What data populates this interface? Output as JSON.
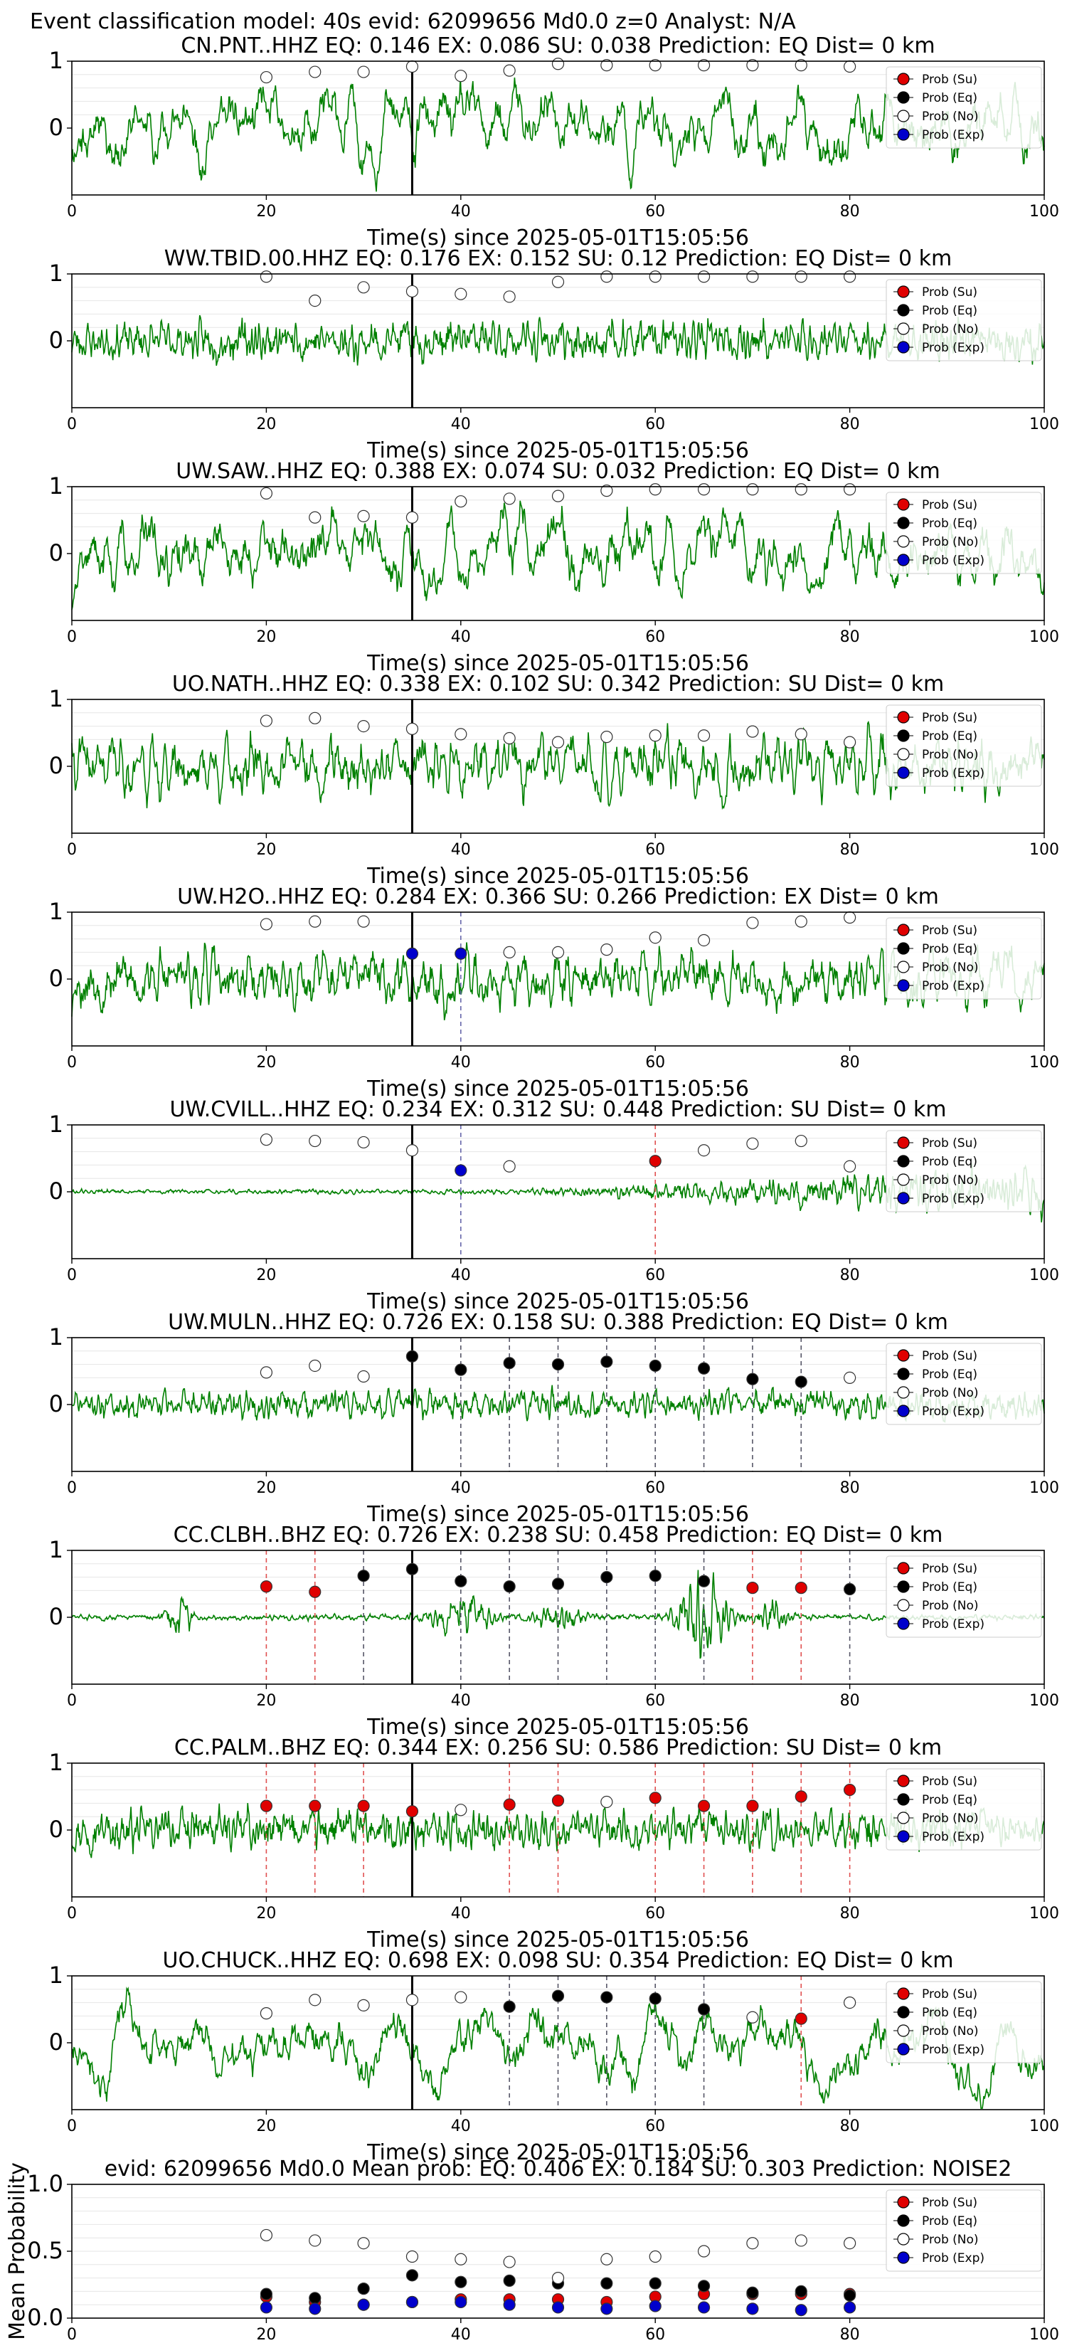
{
  "figure": {
    "suptitle": "Event classification model: 40s evid: 62099656 Md0.0 z=0 Analyst: N/A"
  },
  "colors": {
    "waveform": "#008000",
    "su": "#e00000",
    "eq": "#000000",
    "no": "#ffffff",
    "exp": "#0000cc",
    "su_line": "#e05050",
    "eq_line": "#555566",
    "exp_line": "#6666aa"
  },
  "legend": [
    "Prob (Su)",
    "Prob (Eq)",
    "Prob (No)",
    "Prob (Exp)"
  ],
  "chart_data": [
    {
      "type": "line",
      "station": "CN.PNT..HHZ",
      "title": "CN.PNT..HHZ   EQ: 0.146  EX: 0.086  SU: 0.038   Prediction: EQ    Dist= 0 km",
      "xlabel": "Time(s) since 2025-05-01T15:05:56",
      "xlim": [
        0,
        100
      ],
      "ylim": [
        -1,
        1
      ],
      "xticks": [
        "0",
        "20",
        "40",
        "60",
        "80",
        "100"
      ],
      "yticks": [
        "1",
        "0"
      ],
      "pick_time": 35,
      "wave": {
        "amp": 0.55,
        "smooth": 6,
        "seed": 11
      },
      "times": [
        20,
        25,
        30,
        35,
        40,
        45,
        50,
        55,
        60,
        65,
        70,
        75,
        80
      ],
      "classes": [
        "No",
        "No",
        "No",
        "No",
        "No",
        "No",
        "No",
        "No",
        "No",
        "No",
        "No",
        "No",
        "No"
      ],
      "probs": [
        0.76,
        0.84,
        0.84,
        0.92,
        0.78,
        0.86,
        0.96,
        0.94,
        0.94,
        0.94,
        0.94,
        0.94,
        0.92
      ]
    },
    {
      "type": "line",
      "station": "WW.TBID.00.HHZ",
      "title": "WW.TBID.00.HHZ   EQ: 0.176  EX: 0.152  SU: 0.12   Prediction: EQ    Dist= 0 km",
      "xlabel": "Time(s) since 2025-05-01T15:05:56",
      "xlim": [
        0,
        100
      ],
      "ylim": [
        -1,
        1
      ],
      "xticks": [
        "0",
        "20",
        "40",
        "60",
        "80",
        "100"
      ],
      "yticks": [
        "1",
        "0"
      ],
      "pick_time": 35,
      "wave": {
        "amp": 0.42,
        "smooth": 1,
        "seed": 23
      },
      "times": [
        20,
        25,
        30,
        35,
        40,
        45,
        50,
        55,
        60,
        65,
        70,
        75,
        80
      ],
      "classes": [
        "No",
        "No",
        "No",
        "No",
        "No",
        "No",
        "No",
        "No",
        "No",
        "No",
        "No",
        "No",
        "No"
      ],
      "probs": [
        0.96,
        0.6,
        0.8,
        0.74,
        0.7,
        0.66,
        0.88,
        0.96,
        0.96,
        0.96,
        0.96,
        0.96,
        0.96
      ]
    },
    {
      "type": "line",
      "station": "UW.SAW..HHZ",
      "title": "UW.SAW..HHZ   EQ: 0.388  EX: 0.074  SU: 0.032   Prediction: EQ    Dist= 0 km",
      "xlabel": "Time(s) since 2025-05-01T15:05:56",
      "xlim": [
        0,
        100
      ],
      "ylim": [
        -1,
        1
      ],
      "xticks": [
        "0",
        "20",
        "40",
        "60",
        "80",
        "100"
      ],
      "yticks": [
        "1",
        "0"
      ],
      "pick_time": 35,
      "wave": {
        "amp": 0.5,
        "smooth": 5,
        "seed": 37
      },
      "times": [
        20,
        25,
        30,
        35,
        40,
        45,
        50,
        55,
        60,
        65,
        70,
        75,
        80
      ],
      "classes": [
        "No",
        "No",
        "No",
        "No",
        "No",
        "No",
        "No",
        "No",
        "No",
        "No",
        "No",
        "No",
        "No"
      ],
      "probs": [
        0.9,
        0.54,
        0.56,
        0.54,
        0.78,
        0.82,
        0.86,
        0.94,
        0.96,
        0.96,
        0.96,
        0.96,
        0.96
      ]
    },
    {
      "type": "line",
      "station": "UO.NATH..HHZ",
      "title": "UO.NATH..HHZ   EQ: 0.338  EX: 0.102  SU: 0.342   Prediction: SU    Dist= 0 km",
      "xlabel": "Time(s) since 2025-05-01T15:05:56",
      "xlim": [
        0,
        100
      ],
      "ylim": [
        -1,
        1
      ],
      "xticks": [
        "0",
        "20",
        "40",
        "60",
        "80",
        "100"
      ],
      "yticks": [
        "1",
        "0"
      ],
      "pick_time": 35,
      "wave": {
        "amp": 0.42,
        "smooth": 2,
        "seed": 41
      },
      "times": [
        20,
        25,
        30,
        35,
        40,
        45,
        50,
        55,
        60,
        65,
        70,
        75,
        80
      ],
      "classes": [
        "No",
        "No",
        "No",
        "No",
        "No",
        "No",
        "No",
        "No",
        "No",
        "No",
        "No",
        "No",
        "No"
      ],
      "probs": [
        0.68,
        0.72,
        0.6,
        0.56,
        0.48,
        0.42,
        0.36,
        0.44,
        0.46,
        0.46,
        0.52,
        0.48,
        0.36
      ]
    },
    {
      "type": "line",
      "station": "UW.H2O..HHZ",
      "title": "UW.H2O..HHZ   EQ: 0.284  EX: 0.366  SU: 0.266   Prediction: EX    Dist= 0 km",
      "xlabel": "Time(s) since 2025-05-01T15:05:56",
      "xlim": [
        0,
        100
      ],
      "ylim": [
        -1,
        1
      ],
      "xticks": [
        "0",
        "20",
        "40",
        "60",
        "80",
        "100"
      ],
      "yticks": [
        "1",
        "0"
      ],
      "pick_time": 35,
      "wave": {
        "amp": 0.4,
        "smooth": 2,
        "seed": 53
      },
      "times": [
        20,
        25,
        30,
        35,
        40,
        45,
        50,
        55,
        60,
        65,
        70,
        75,
        80
      ],
      "classes": [
        "No",
        "No",
        "No",
        "Exp",
        "Exp",
        "No",
        "No",
        "No",
        "No",
        "No",
        "No",
        "No",
        "No"
      ],
      "probs": [
        0.82,
        0.86,
        0.86,
        0.38,
        0.38,
        0.4,
        0.4,
        0.44,
        0.62,
        0.58,
        0.84,
        0.86,
        0.92
      ]
    },
    {
      "type": "line",
      "station": "UW.CVILL..HHZ",
      "title": "UW.CVILL..HHZ   EQ: 0.234  EX: 0.312  SU: 0.448   Prediction: SU    Dist= 0 km",
      "xlabel": "Time(s) since 2025-05-01T15:05:56",
      "xlim": [
        0,
        100
      ],
      "ylim": [
        -1,
        1
      ],
      "xticks": [
        "0",
        "20",
        "40",
        "60",
        "80",
        "100"
      ],
      "yticks": [
        "1",
        "0"
      ],
      "pick_time": 35,
      "wave": {
        "amp": 0.05,
        "smooth": 1,
        "seed": 61,
        "ramp_start": 45,
        "ramp_end": 100,
        "ramp_amp": 0.45
      },
      "times": [
        20,
        25,
        30,
        35,
        40,
        45,
        60,
        65,
        70,
        75,
        80
      ],
      "classes": [
        "No",
        "No",
        "No",
        "No",
        "Exp",
        "No",
        "Su",
        "No",
        "No",
        "No",
        "No"
      ],
      "probs": [
        0.78,
        0.76,
        0.74,
        0.62,
        0.32,
        0.38,
        0.46,
        0.62,
        0.72,
        0.76,
        0.38
      ]
    },
    {
      "type": "line",
      "station": "UW.MULN..HHZ",
      "title": "UW.MULN..HHZ   EQ: 0.726  EX: 0.158  SU: 0.388   Prediction: EQ    Dist= 0 km",
      "xlabel": "Time(s) since 2025-05-01T15:05:56",
      "xlim": [
        0,
        100
      ],
      "ylim": [
        -1,
        1
      ],
      "xticks": [
        "0",
        "20",
        "40",
        "60",
        "80",
        "100"
      ],
      "yticks": [
        "1",
        "0"
      ],
      "pick_time": 35,
      "wave": {
        "amp": 0.3,
        "smooth": 1,
        "seed": 71
      },
      "times": [
        20,
        25,
        30,
        35,
        40,
        45,
        50,
        55,
        60,
        65,
        70,
        75,
        80
      ],
      "classes": [
        "No",
        "No",
        "No",
        "Eq",
        "Eq",
        "Eq",
        "Eq",
        "Eq",
        "Eq",
        "Eq",
        "Eq",
        "Eq",
        "No"
      ],
      "probs": [
        0.48,
        0.58,
        0.42,
        0.72,
        0.52,
        0.62,
        0.6,
        0.64,
        0.58,
        0.54,
        0.38,
        0.34,
        0.4
      ]
    },
    {
      "type": "line",
      "station": "CC.CLBH..BHZ",
      "title": "CC.CLBH..BHZ   EQ: 0.726  EX: 0.238  SU: 0.458   Prediction: EQ    Dist= 0 km",
      "xlabel": "Time(s) since 2025-05-01T15:05:56",
      "xlim": [
        0,
        100
      ],
      "ylim": [
        -1,
        1
      ],
      "xticks": [
        "0",
        "20",
        "40",
        "60",
        "80",
        "100"
      ],
      "yticks": [
        "1",
        "0"
      ],
      "pick_time": 35,
      "wave": {
        "amp": 0.06,
        "smooth": 1,
        "seed": 83,
        "bursts": [
          [
            11,
            1.2,
            0.5
          ],
          [
            40,
            3,
            0.4
          ],
          [
            50,
            2,
            0.35
          ],
          [
            65,
            2.5,
            0.9
          ],
          [
            72,
            1.5,
            0.3
          ]
        ]
      },
      "times": [
        20,
        25,
        30,
        35,
        40,
        45,
        50,
        55,
        60,
        65,
        70,
        75,
        80
      ],
      "classes": [
        "Su",
        "Su",
        "Eq",
        "Eq",
        "Eq",
        "Eq",
        "Eq",
        "Eq",
        "Eq",
        "Eq",
        "Su",
        "Su",
        "Eq"
      ],
      "probs": [
        0.46,
        0.38,
        0.62,
        0.72,
        0.54,
        0.46,
        0.5,
        0.6,
        0.62,
        0.54,
        0.44,
        0.44,
        0.42
      ]
    },
    {
      "type": "line",
      "station": "CC.PALM..BHZ",
      "title": "CC.PALM..BHZ   EQ: 0.344  EX: 0.256  SU: 0.586   Prediction: SU    Dist= 0 km",
      "xlabel": "Time(s) since 2025-05-01T15:05:56",
      "xlim": [
        0,
        100
      ],
      "ylim": [
        -1,
        1
      ],
      "xticks": [
        "0",
        "20",
        "40",
        "60",
        "80",
        "100"
      ],
      "yticks": [
        "1",
        "0"
      ],
      "pick_time": 35,
      "wave": {
        "amp": 0.42,
        "smooth": 1,
        "seed": 97
      },
      "times": [
        20,
        25,
        30,
        35,
        40,
        45,
        50,
        55,
        60,
        65,
        70,
        75,
        80
      ],
      "classes": [
        "Su",
        "Su",
        "Su",
        "Su",
        "No",
        "Su",
        "Su",
        "No",
        "Su",
        "Su",
        "Su",
        "Su",
        "Su"
      ],
      "probs": [
        0.36,
        0.36,
        0.36,
        0.28,
        0.3,
        0.38,
        0.44,
        0.42,
        0.48,
        0.36,
        0.36,
        0.5,
        0.6
      ]
    },
    {
      "type": "line",
      "station": "UO.CHUCK..HHZ",
      "title": "UO.CHUCK..HHZ   EQ: 0.698  EX: 0.098  SU: 0.354   Prediction: EQ    Dist= 0 km",
      "xlabel": "Time(s) since 2025-05-01T15:05:56",
      "xlim": [
        0,
        100
      ],
      "ylim": [
        -1,
        1
      ],
      "xticks": [
        "0",
        "20",
        "40",
        "60",
        "80",
        "100"
      ],
      "yticks": [
        "1",
        "0"
      ],
      "pick_time": 35,
      "wave": {
        "amp": 0.6,
        "smooth": 14,
        "seed": 101
      },
      "times": [
        20,
        25,
        30,
        35,
        40,
        45,
        50,
        55,
        60,
        65,
        70,
        75,
        80
      ],
      "classes": [
        "No",
        "No",
        "No",
        "No",
        "No",
        "Eq",
        "Eq",
        "Eq",
        "Eq",
        "Eq",
        "No",
        "Su",
        "No"
      ],
      "probs": [
        0.44,
        0.64,
        0.56,
        0.64,
        0.68,
        0.54,
        0.7,
        0.68,
        0.66,
        0.5,
        0.38,
        0.36,
        0.6
      ]
    },
    {
      "type": "scatter",
      "station": "mean",
      "title": "evid: 62099656   Md0.0   Mean prob:   EQ: 0.406  EX: 0.184  SU: 0.303   Prediction: NOISE2",
      "xlabel": "",
      "ylabel": "Mean Probability",
      "xlim": [
        0,
        100
      ],
      "ylim": [
        0,
        1
      ],
      "xticks": [
        "0",
        "20",
        "40",
        "60",
        "80",
        "100"
      ],
      "yticks": [
        "0.0",
        "0.5",
        "1.0"
      ],
      "x": [
        20,
        25,
        30,
        35,
        40,
        45,
        50,
        55,
        60,
        65,
        70,
        75,
        80
      ],
      "series": [
        {
          "name": "Prob (Su)",
          "values": [
            0.16,
            0.12,
            0.1,
            0.12,
            0.14,
            0.14,
            0.14,
            0.12,
            0.16,
            0.18,
            0.18,
            0.18,
            0.18
          ]
        },
        {
          "name": "Prob (Eq)",
          "values": [
            0.18,
            0.15,
            0.22,
            0.32,
            0.27,
            0.28,
            0.26,
            0.26,
            0.26,
            0.24,
            0.19,
            0.2,
            0.17
          ]
        },
        {
          "name": "Prob (No)",
          "values": [
            0.62,
            0.58,
            0.56,
            0.46,
            0.44,
            0.42,
            0.3,
            0.44,
            0.46,
            0.5,
            0.56,
            0.58,
            0.56
          ]
        },
        {
          "name": "Prob (Exp)",
          "values": [
            0.08,
            0.07,
            0.1,
            0.12,
            0.12,
            0.1,
            0.08,
            0.07,
            0.09,
            0.08,
            0.07,
            0.06,
            0.08
          ]
        }
      ]
    }
  ]
}
